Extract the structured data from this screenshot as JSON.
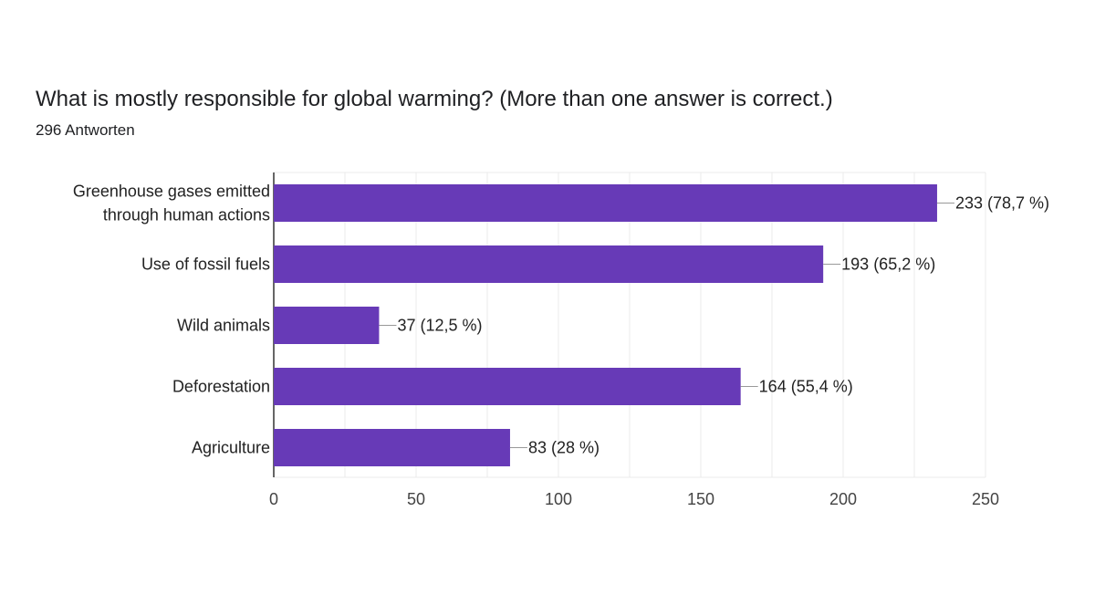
{
  "header": {
    "question": "What is mostly responsible for global warming? (More than one answer is correct.)",
    "responses": "296 Antworten"
  },
  "colors": {
    "bar": "#673ab7",
    "grid": "#ebebeb",
    "axis": "#333333",
    "leader": "#999999"
  },
  "chart_data": {
    "type": "bar",
    "orientation": "horizontal",
    "title": "What is mostly responsible for global warming? (More than one answer is correct.)",
    "subtitle": "296 Antworten",
    "categories": [
      [
        "Greenhouse gases emitted",
        "through human actions"
      ],
      [
        "Use of fossil fuels"
      ],
      [
        "Wild animals"
      ],
      [
        "Deforestation"
      ],
      [
        "Agriculture"
      ]
    ],
    "values": [
      233,
      193,
      37,
      164,
      83
    ],
    "data_labels": [
      "233 (78,7 %)",
      "193 (65,2 %)",
      "37 (12,5 %)",
      "164 (55,4 %)",
      "83 (28 %)"
    ],
    "xlim": [
      0,
      250
    ],
    "xticks": [
      0,
      50,
      100,
      150,
      200,
      250
    ],
    "xlabel": "",
    "ylabel": "",
    "grid": true,
    "legend": "none"
  }
}
